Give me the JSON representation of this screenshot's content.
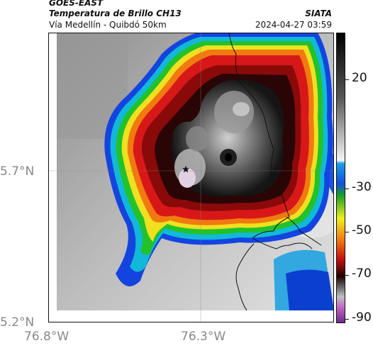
{
  "header": {
    "satellite": "GOES-EAST",
    "product": "Temperatura de Brillo CH13",
    "region": "Vía Medellín - Quibdó 50km",
    "org": "SIATA",
    "timestamp": "2024-04-27 03:59"
  },
  "axes": {
    "lat_labels": [
      "5.7°N",
      "5.2°N"
    ],
    "lon_labels": [
      "76.8°W",
      "76.3°W"
    ]
  },
  "colorbar": {
    "ticks": [
      "20",
      "-30",
      "-50",
      "-70",
      "-90"
    ]
  },
  "marker": {
    "icon": "star-icon"
  }
}
